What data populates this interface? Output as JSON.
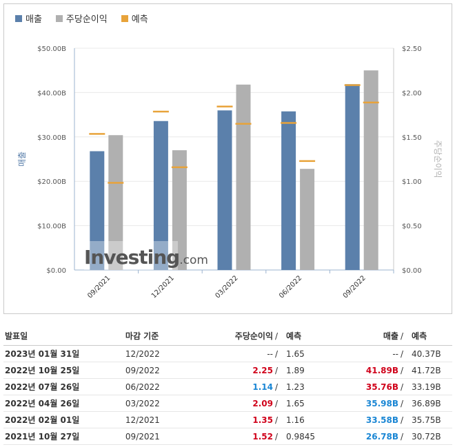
{
  "legend": [
    {
      "label": "매출",
      "color": "#5b80ab"
    },
    {
      "label": "주당순이익",
      "color": "#b0b0b0"
    },
    {
      "label": "예측",
      "color": "#e8a33a"
    }
  ],
  "chart_data": {
    "type": "bar",
    "categories": [
      "09/2021",
      "12/2021",
      "03/2022",
      "06/2022",
      "09/2022"
    ],
    "series": [
      {
        "name": "매출",
        "axis": "left",
        "values": [
          26.78,
          33.58,
          35.98,
          35.76,
          41.89
        ],
        "color": "#5b80ab"
      },
      {
        "name": "주당순이익",
        "axis": "right",
        "values": [
          1.52,
          1.35,
          2.09,
          1.14,
          2.25
        ],
        "color": "#b0b0b0"
      }
    ],
    "forecasts": {
      "name": "예측",
      "color": "#e8a33a",
      "revenue": [
        30.72,
        35.75,
        36.89,
        33.19,
        41.72
      ],
      "eps": [
        0.9845,
        1.16,
        1.65,
        1.23,
        1.89
      ]
    },
    "ylabel": "매출",
    "y2label": "주당순이익",
    "ylim": [
      0,
      50
    ],
    "y2lim": [
      0,
      2.5
    ],
    "yticks": [
      "$0.00",
      "$10.00B",
      "$20.00B",
      "$30.00B",
      "$40.00B",
      "$50.00B"
    ],
    "y2ticks": [
      "$0.00",
      "$0.50",
      "$1.00",
      "$1.50",
      "$2.00",
      "$2.50"
    ],
    "watermark": "Investing.com"
  },
  "table": {
    "headers": {
      "date": "발표일",
      "period": "마감 기준",
      "eps": "주당순이익",
      "eps_forecast": "예측",
      "revenue": "매출",
      "revenue_forecast": "예측",
      "slash": "/"
    },
    "rows": [
      {
        "date": "2023년 01월 31일",
        "period": "12/2022",
        "eps": "--",
        "eps_forecast": "1.65",
        "revenue": "--",
        "revenue_forecast": "40.37B",
        "eps_class": "neu",
        "rev_class": "neu"
      },
      {
        "date": "2022년 10월 25일",
        "period": "09/2022",
        "eps": "2.25",
        "eps_forecast": "1.89",
        "revenue": "41.89B",
        "revenue_forecast": "41.72B",
        "eps_class": "pos",
        "rev_class": "pos"
      },
      {
        "date": "2022년 07월 26일",
        "period": "06/2022",
        "eps": "1.14",
        "eps_forecast": "1.23",
        "revenue": "35.76B",
        "revenue_forecast": "33.19B",
        "eps_class": "neg",
        "rev_class": "pos"
      },
      {
        "date": "2022년 04월 26일",
        "period": "03/2022",
        "eps": "2.09",
        "eps_forecast": "1.65",
        "revenue": "35.98B",
        "revenue_forecast": "36.89B",
        "eps_class": "pos",
        "rev_class": "neg"
      },
      {
        "date": "2022년 02월 01일",
        "period": "12/2021",
        "eps": "1.35",
        "eps_forecast": "1.16",
        "revenue": "33.58B",
        "revenue_forecast": "35.75B",
        "eps_class": "pos",
        "rev_class": "neg"
      },
      {
        "date": "2021년 10월 27일",
        "period": "09/2021",
        "eps": "1.52",
        "eps_forecast": "0.9845",
        "revenue": "26.78B",
        "revenue_forecast": "30.72B",
        "eps_class": "pos",
        "rev_class": "neg"
      }
    ]
  }
}
